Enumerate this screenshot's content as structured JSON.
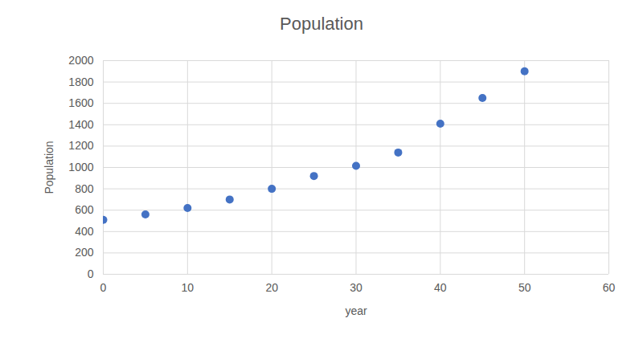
{
  "chart_data": {
    "type": "scatter",
    "title": "Population",
    "x_label": "year",
    "y_label": "Population",
    "x": [
      0,
      5,
      10,
      15,
      20,
      25,
      30,
      35,
      40,
      45,
      50
    ],
    "values": [
      510,
      560,
      620,
      700,
      800,
      920,
      1015,
      1140,
      1410,
      1650,
      1900
    ],
    "color": "#4472c4",
    "marker": "circle",
    "xlim": [
      0,
      60
    ],
    "xticks": [
      0,
      10,
      20,
      30,
      40,
      50,
      60
    ],
    "ylim": [
      0,
      2000
    ],
    "yticks": [
      0,
      200,
      400,
      600,
      800,
      1000,
      1200,
      1400,
      1600,
      1800,
      2000
    ],
    "grid": true
  }
}
